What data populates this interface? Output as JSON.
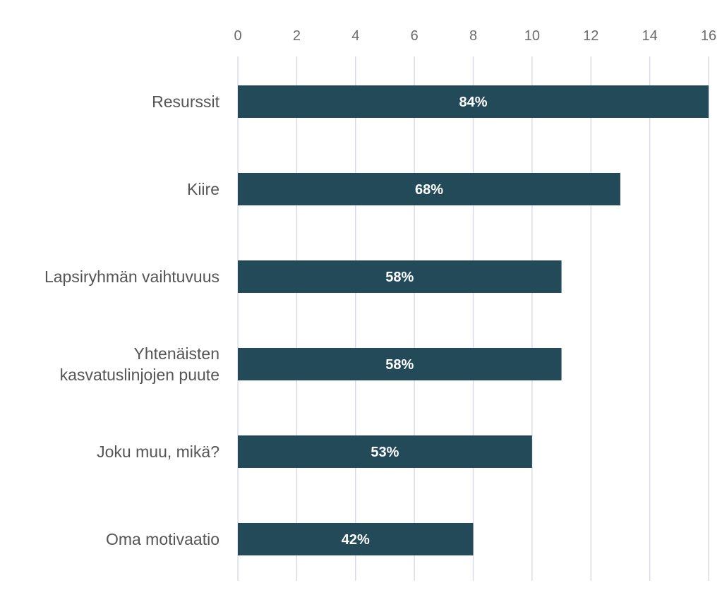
{
  "chart_data": {
    "type": "bar",
    "orientation": "horizontal",
    "title": "",
    "xlabel": "",
    "ylabel": "",
    "xlim": [
      0,
      16
    ],
    "ticks": [
      0,
      2,
      4,
      6,
      8,
      10,
      12,
      14,
      16
    ],
    "grid": true,
    "axis_position": "top",
    "bar_color": "#234a59",
    "categories": [
      [
        "Resurssit"
      ],
      [
        "Kiire"
      ],
      [
        "Lapsiryhmän vaihtuvuus"
      ],
      [
        "Yhtenäisten",
        "kasvatuslinjojen puute"
      ],
      [
        "Joku muu, mikä?"
      ],
      [
        "Oma motivaatio"
      ]
    ],
    "values": [
      16,
      13,
      11,
      11,
      10,
      8
    ],
    "data_labels": [
      "84%",
      "68%",
      "58%",
      "58%",
      "53%",
      "42%"
    ]
  }
}
